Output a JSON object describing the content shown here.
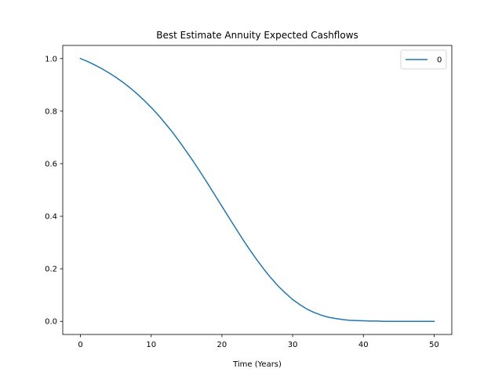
{
  "chart_data": {
    "type": "line",
    "title": "Best Estimate Annuity Expected Cashflows",
    "xlabel": "Time (Years)",
    "ylabel": "",
    "xlim": [
      -2.5,
      52.5
    ],
    "ylim": [
      -0.05,
      1.05
    ],
    "xticks": [
      0,
      10,
      20,
      30,
      40,
      50
    ],
    "yticks": [
      0.0,
      0.2,
      0.4,
      0.6,
      0.8,
      1.0
    ],
    "xtick_labels": [
      "0",
      "10",
      "20",
      "30",
      "40",
      "50"
    ],
    "ytick_labels": [
      "0.0",
      "0.2",
      "0.4",
      "0.6",
      "0.8",
      "1.0"
    ],
    "grid": false,
    "legend_position": "top-right",
    "series": [
      {
        "name": "0",
        "color": "#1f77b4",
        "x": [
          0,
          1,
          2,
          3,
          4,
          5,
          6,
          7,
          8,
          9,
          10,
          11,
          12,
          13,
          14,
          15,
          16,
          17,
          18,
          19,
          20,
          21,
          22,
          23,
          24,
          25,
          26,
          27,
          28,
          29,
          30,
          31,
          32,
          33,
          34,
          35,
          36,
          37,
          38,
          39,
          40,
          41,
          42,
          43,
          44,
          45,
          46,
          47,
          48,
          49,
          50
        ],
        "y": [
          1.0,
          0.989,
          0.976,
          0.962,
          0.946,
          0.929,
          0.91,
          0.889,
          0.866,
          0.841,
          0.814,
          0.785,
          0.753,
          0.72,
          0.684,
          0.646,
          0.607,
          0.566,
          0.524,
          0.481,
          0.438,
          0.395,
          0.352,
          0.31,
          0.27,
          0.232,
          0.196,
          0.163,
          0.133,
          0.107,
          0.083,
          0.064,
          0.047,
          0.034,
          0.024,
          0.016,
          0.011,
          0.007,
          0.004,
          0.003,
          0.002,
          0.001,
          0.001,
          0.0,
          0.0,
          0.0,
          0.0,
          0.0,
          0.0,
          0.0,
          0.0
        ]
      }
    ]
  }
}
